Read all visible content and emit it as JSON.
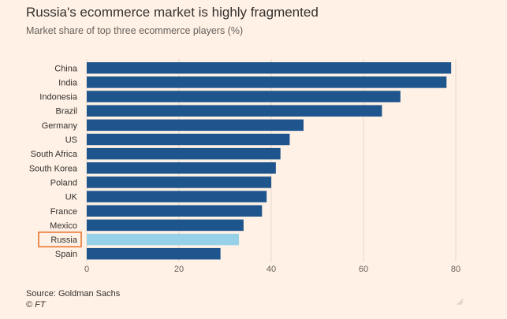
{
  "chart_data": {
    "type": "bar",
    "orientation": "horizontal",
    "title": "Russia's ecommerce market is highly fragmented",
    "subtitle": "Market share of top three ecommerce players (%)",
    "categories": [
      "China",
      "India",
      "Indonesia",
      "Brazil",
      "Germany",
      "US",
      "South Africa",
      "South Korea",
      "Poland",
      "UK",
      "France",
      "Mexico",
      "Russia",
      "Spain"
    ],
    "values": [
      79,
      78,
      68,
      64,
      47,
      44,
      42,
      41,
      40,
      39,
      38,
      34,
      33,
      29
    ],
    "highlight_category": "Russia",
    "xlim": [
      0,
      80
    ],
    "xticks": [
      0,
      20,
      40,
      60,
      80
    ],
    "grid": true,
    "colors": {
      "bar": "#1e558c",
      "highlight": "#96d1e8",
      "highlight_box": "#e8742f",
      "grid": "#e3d9cf",
      "background": "#fff1e5"
    }
  },
  "source": "Source: Goldman Sachs",
  "footer": "© FT"
}
